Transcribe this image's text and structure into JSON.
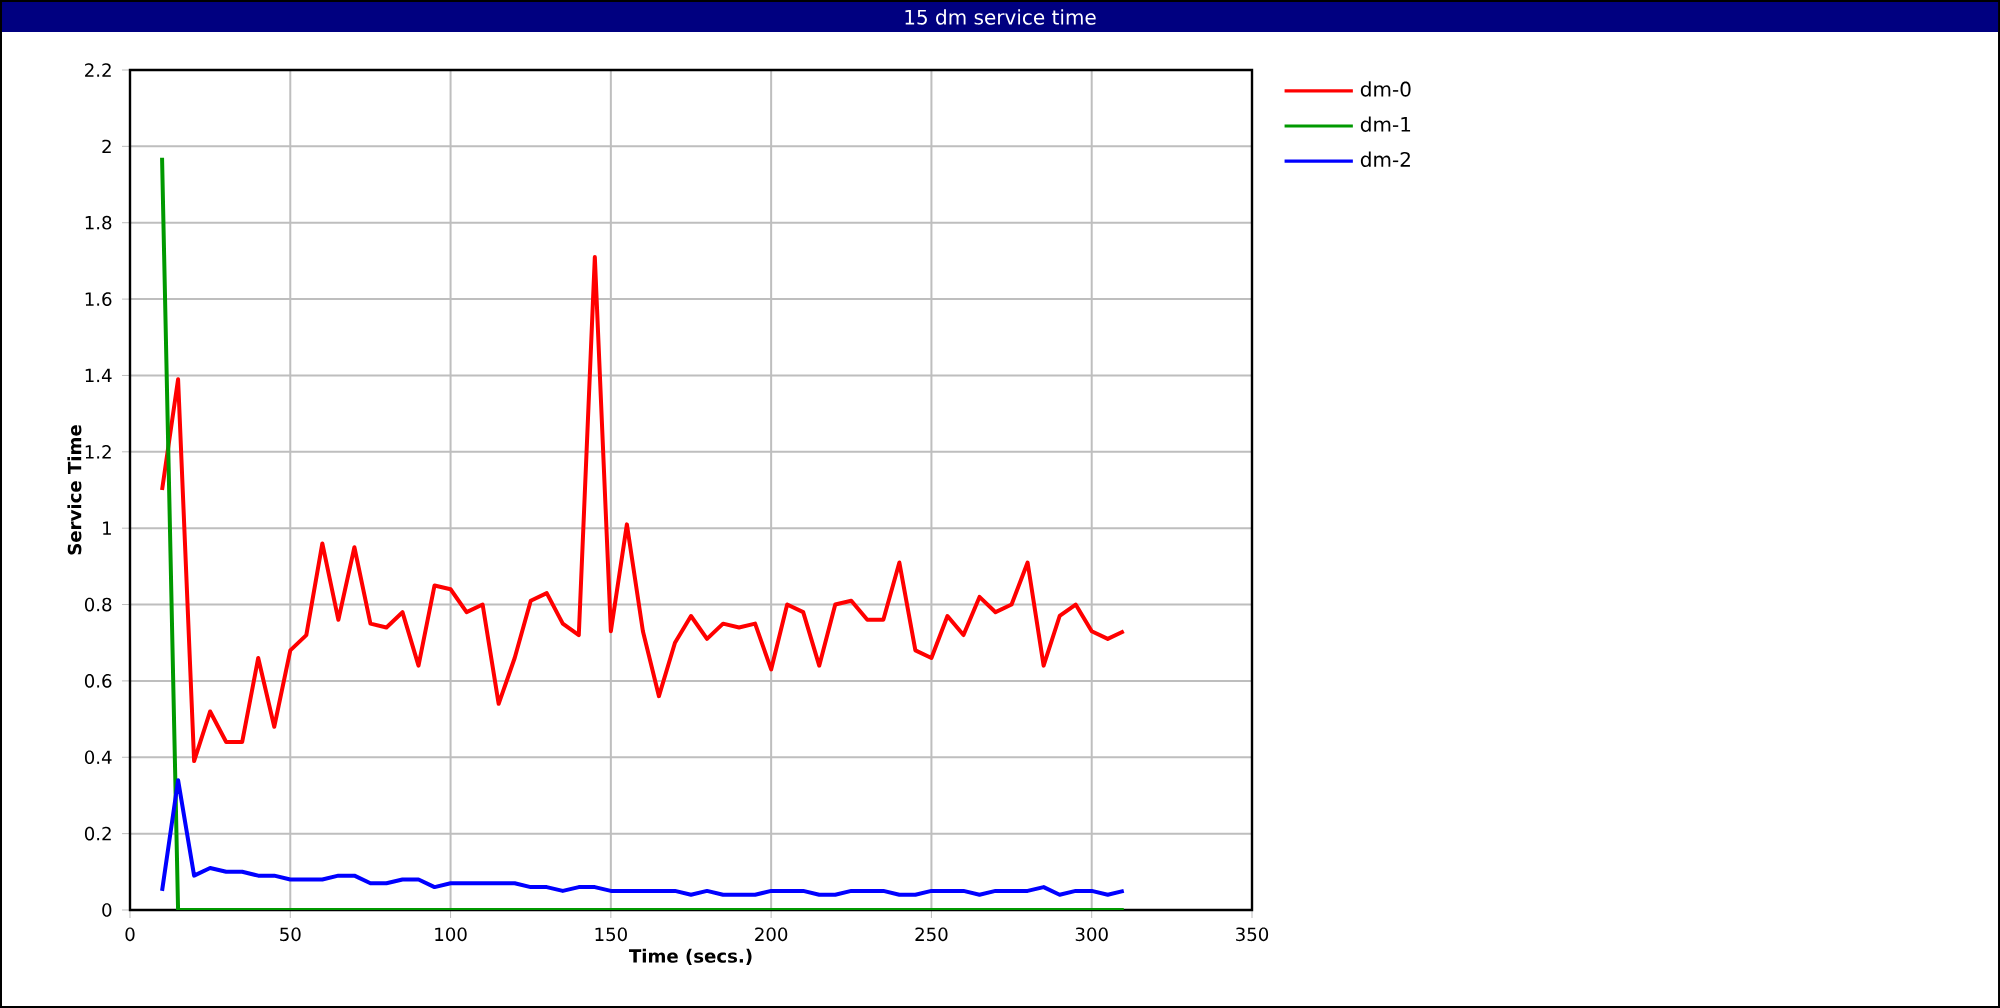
{
  "chart_data": {
    "type": "line",
    "title": "15 dm service time",
    "xlabel": "Time (secs.)",
    "ylabel": "Service Time",
    "x": [
      10,
      15,
      20,
      25,
      30,
      35,
      40,
      45,
      50,
      55,
      60,
      65,
      70,
      75,
      80,
      85,
      90,
      95,
      100,
      105,
      110,
      115,
      120,
      125,
      130,
      135,
      140,
      145,
      150,
      155,
      160,
      165,
      170,
      175,
      180,
      185,
      190,
      195,
      200,
      205,
      210,
      215,
      220,
      225,
      230,
      235,
      240,
      245,
      250,
      255,
      260,
      265,
      270,
      275,
      280,
      285,
      290,
      295,
      300,
      305,
      310
    ],
    "series": [
      {
        "name": "dm-0",
        "color": "#ff0000",
        "values": [
          1.1,
          1.39,
          0.39,
          0.52,
          0.44,
          0.44,
          0.66,
          0.48,
          0.68,
          0.72,
          0.96,
          0.76,
          0.95,
          0.75,
          0.74,
          0.78,
          0.64,
          0.85,
          0.84,
          0.78,
          0.8,
          0.54,
          0.66,
          0.81,
          0.83,
          0.75,
          0.72,
          1.71,
          0.73,
          1.01,
          0.73,
          0.56,
          0.7,
          0.77,
          0.71,
          0.75,
          0.74,
          0.75,
          0.63,
          0.8,
          0.78,
          0.64,
          0.8,
          0.81,
          0.76,
          0.76,
          0.91,
          0.68,
          0.66,
          0.77,
          0.72,
          0.82,
          0.78,
          0.8,
          0.91,
          0.64,
          0.77,
          0.8,
          0.73,
          0.71,
          0.73
        ]
      },
      {
        "name": "dm-1",
        "color": "#009900",
        "values": [
          1.97,
          0,
          0,
          0,
          0,
          0,
          0,
          0,
          0,
          0,
          0,
          0,
          0,
          0,
          0,
          0,
          0,
          0,
          0,
          0,
          0,
          0,
          0,
          0,
          0,
          0,
          0,
          0,
          0,
          0,
          0,
          0,
          0,
          0,
          0,
          0,
          0,
          0,
          0,
          0,
          0,
          0,
          0,
          0,
          0,
          0,
          0,
          0,
          0,
          0,
          0,
          0,
          0,
          0,
          0,
          0,
          0,
          0,
          0,
          0,
          0
        ]
      },
      {
        "name": "dm-2",
        "color": "#0000ff",
        "values": [
          0.05,
          0.34,
          0.09,
          0.11,
          0.1,
          0.1,
          0.09,
          0.09,
          0.08,
          0.08,
          0.08,
          0.09,
          0.09,
          0.07,
          0.07,
          0.08,
          0.08,
          0.06,
          0.07,
          0.07,
          0.07,
          0.07,
          0.07,
          0.06,
          0.06,
          0.05,
          0.06,
          0.06,
          0.05,
          0.05,
          0.05,
          0.05,
          0.05,
          0.04,
          0.05,
          0.04,
          0.04,
          0.04,
          0.05,
          0.05,
          0.05,
          0.04,
          0.04,
          0.05,
          0.05,
          0.05,
          0.04,
          0.04,
          0.05,
          0.05,
          0.05,
          0.04,
          0.05,
          0.05,
          0.05,
          0.06,
          0.04,
          0.05,
          0.05,
          0.04,
          0.05
        ]
      }
    ],
    "xlim": [
      0,
      350
    ],
    "ylim": [
      0,
      2.2
    ],
    "xticks": [
      0,
      50,
      100,
      150,
      200,
      250,
      300,
      350
    ],
    "yticks": [
      0,
      0.2,
      0.4,
      0.6,
      0.8,
      1,
      1.2,
      1.4,
      1.6,
      1.8,
      2,
      2.2
    ],
    "grid": true,
    "legend": "top right",
    "marker": "none",
    "line_style": "solid"
  }
}
